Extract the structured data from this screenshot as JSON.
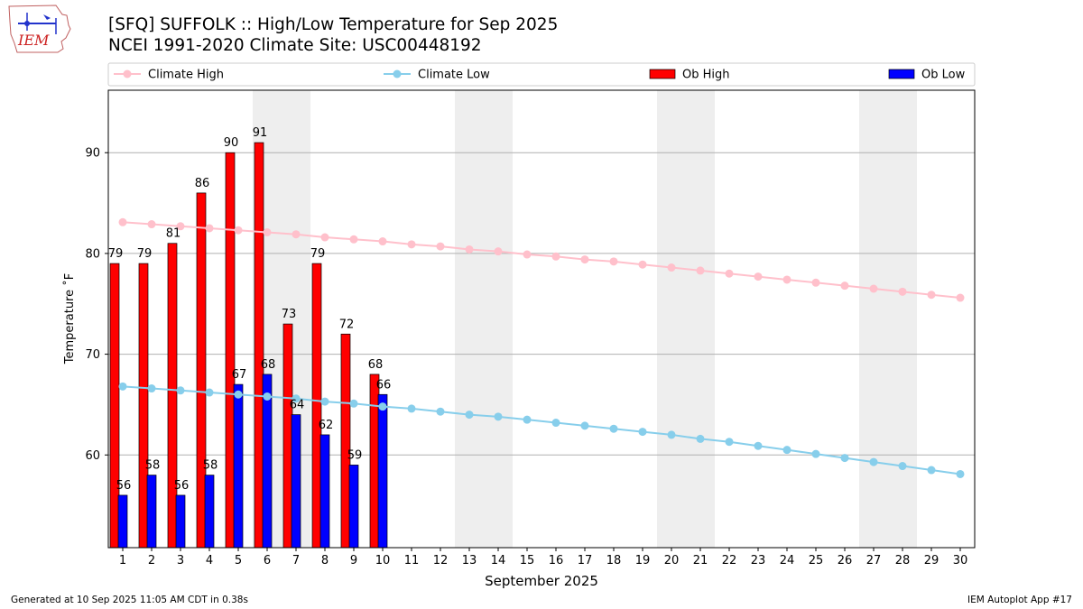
{
  "logo_text": "IEM",
  "title_line1": "[SFQ] SUFFOLK :: High/Low Temperature for Sep 2025",
  "title_line2": "NCEI 1991-2020 Climate Site: USC00448192",
  "footer_left": "Generated at 10 Sep 2025 11:05 AM CDT in 0.38s",
  "footer_right": "IEM Autoplot App #17",
  "colors": {
    "climate_high": "#ffc0cb",
    "climate_low": "#87ceeb",
    "ob_high": "#ff0000",
    "ob_low": "#0000ff",
    "weekend_shade": "#eeeeee",
    "grid": "#b0b0b0"
  },
  "chart_data": {
    "type": "bar",
    "title": "[SFQ] SUFFOLK :: High/Low Temperature for Sep 2025",
    "xlabel": "September 2025",
    "ylabel": "Temperature ˚F",
    "ylim": [
      50.8,
      96.2
    ],
    "yticks": [
      60,
      70,
      80,
      90
    ],
    "grid": "horizontal",
    "legend_position": "top",
    "days": [
      1,
      2,
      3,
      4,
      5,
      6,
      7,
      8,
      9,
      10,
      11,
      12,
      13,
      14,
      15,
      16,
      17,
      18,
      19,
      20,
      21,
      22,
      23,
      24,
      25,
      26,
      27,
      28,
      29,
      30
    ],
    "weekend_spans": [
      [
        6,
        7
      ],
      [
        13,
        14
      ],
      [
        20,
        21
      ],
      [
        27,
        28
      ]
    ],
    "series": [
      {
        "name": "Climate High",
        "kind": "line",
        "values": [
          83.1,
          82.9,
          82.7,
          82.5,
          82.3,
          82.1,
          81.9,
          81.6,
          81.4,
          81.2,
          80.9,
          80.7,
          80.4,
          80.2,
          79.9,
          79.7,
          79.4,
          79.2,
          78.9,
          78.6,
          78.3,
          78.0,
          77.7,
          77.4,
          77.1,
          76.8,
          76.5,
          76.2,
          75.9,
          75.6
        ]
      },
      {
        "name": "Climate Low",
        "kind": "line",
        "values": [
          66.8,
          66.6,
          66.4,
          66.2,
          66.0,
          65.8,
          65.6,
          65.3,
          65.1,
          64.8,
          64.6,
          64.3,
          64.0,
          63.8,
          63.5,
          63.2,
          62.9,
          62.6,
          62.3,
          62.0,
          61.6,
          61.3,
          60.9,
          60.5,
          60.1,
          59.7,
          59.3,
          58.9,
          58.5,
          58.1
        ]
      },
      {
        "name": "Ob High",
        "kind": "bar",
        "values": [
          79,
          79,
          81,
          86,
          90,
          91,
          73,
          79,
          72,
          68
        ],
        "labels": [
          "79",
          "79",
          "81",
          "86",
          "90",
          "91",
          "73",
          "79",
          "72",
          "68"
        ]
      },
      {
        "name": "Ob Low",
        "kind": "bar",
        "values": [
          56,
          58,
          56,
          58,
          67,
          68,
          64,
          62,
          59,
          66
        ],
        "labels": [
          "56",
          "58",
          "56",
          "58",
          "67",
          "68",
          "64",
          "62",
          "59",
          "66"
        ]
      }
    ]
  }
}
